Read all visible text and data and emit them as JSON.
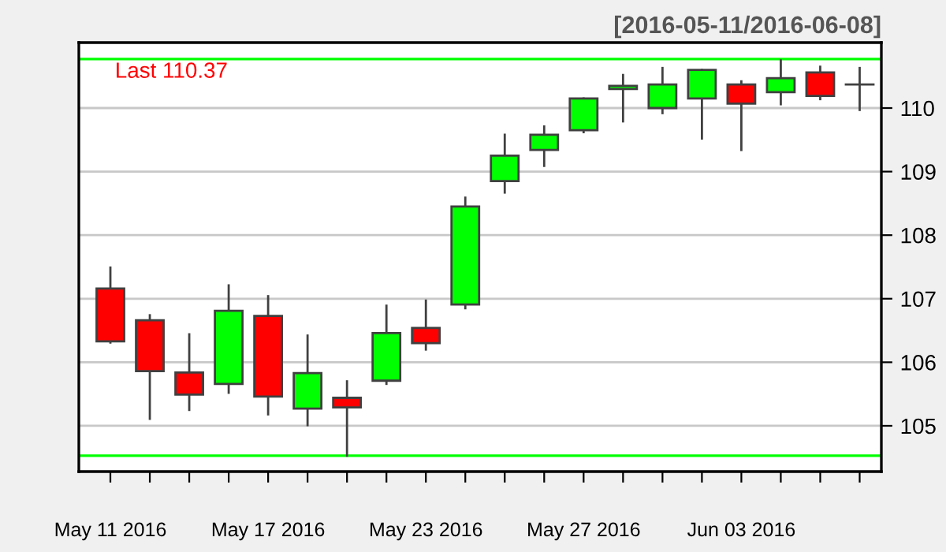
{
  "chart_data": {
    "type": "candlestick",
    "title": "[2016-05-11/2016-06-08]",
    "categories": [
      "May 11 2016",
      null,
      null,
      null,
      "May 17 2016",
      null,
      null,
      null,
      "May 23 2016",
      null,
      null,
      null,
      "May 27 2016",
      null,
      null,
      null,
      "Jun 03 2016",
      null,
      null,
      null
    ],
    "ohlc": [
      [
        107.16,
        107.49,
        106.31,
        106.33
      ],
      [
        106.66,
        106.74,
        105.11,
        105.86
      ],
      [
        105.84,
        106.44,
        105.25,
        105.49
      ],
      [
        105.66,
        107.21,
        105.52,
        106.81
      ],
      [
        106.73,
        107.04,
        105.18,
        105.46
      ],
      [
        105.27,
        106.42,
        105.01,
        105.83
      ],
      [
        105.44,
        105.7,
        104.53,
        105.29
      ],
      [
        105.71,
        106.89,
        105.66,
        106.46
      ],
      [
        106.54,
        106.97,
        106.2,
        106.3
      ],
      [
        106.91,
        108.59,
        106.85,
        108.45
      ],
      [
        108.85,
        109.58,
        108.67,
        109.25
      ],
      [
        109.34,
        109.71,
        109.09,
        109.58
      ],
      [
        109.65,
        110.15,
        109.62,
        110.15
      ],
      [
        110.3,
        110.52,
        109.79,
        110.35
      ],
      [
        110.0,
        110.63,
        109.92,
        110.37
      ],
      [
        110.15,
        110.6,
        109.52,
        110.6
      ],
      [
        110.37,
        110.42,
        109.34,
        110.07
      ],
      [
        110.25,
        110.75,
        110.06,
        110.47
      ],
      [
        110.56,
        110.65,
        110.14,
        110.19
      ],
      [
        110.37,
        110.63,
        109.97,
        110.37
      ]
    ],
    "colors": [
      "#ff0000",
      "#ff0000",
      "#ff0000",
      "#00ff00",
      "#ff0000",
      "#00ff00",
      "#ff0000",
      "#00ff00",
      "#ff0000",
      "#00ff00",
      "#00ff00",
      "#00ff00",
      "#00ff00",
      "#00ff00",
      "#00ff00",
      "#00ff00",
      "#ff0000",
      "#00ff00",
      "#ff0000",
      "#404040"
    ],
    "ylim": [
      104.28,
      111.03
    ],
    "yticks": [
      105,
      106,
      107,
      108,
      109,
      110
    ],
    "grid": "y",
    "ref_lines": [
      {
        "axis": "y",
        "value": 110.77,
        "label": null,
        "color": "#00ff00"
      },
      {
        "axis": "y",
        "value": 104.53,
        "label": null,
        "color": "#00ff00"
      }
    ],
    "annotations": [
      "Last 110.37"
    ]
  }
}
